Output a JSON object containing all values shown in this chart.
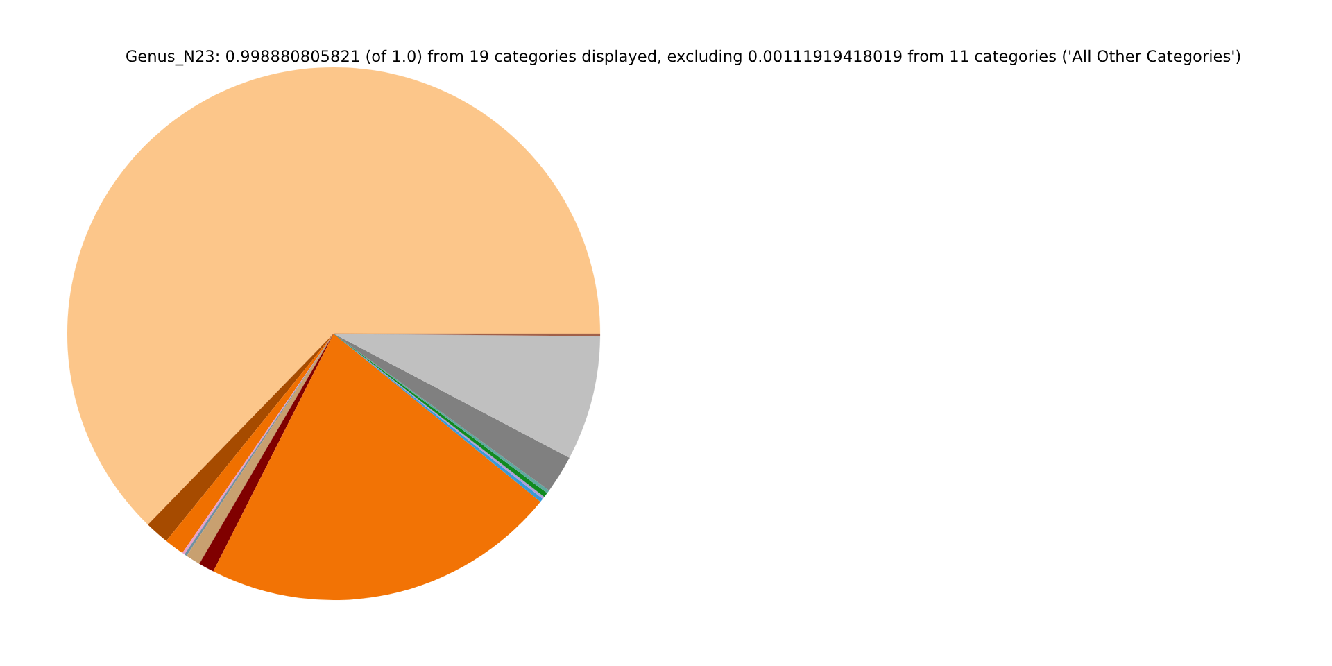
{
  "chart_data": {
    "type": "pie",
    "title": "Genus_N23: 0.998880805821 (of 1.0) from 19 categories displayed, excluding 0.00111919418019 from 11 categories ('All Other Categories')",
    "categories": [
      null,
      null,
      null,
      null,
      null,
      null,
      null,
      null,
      null,
      null,
      null,
      null,
      null,
      null,
      null
    ],
    "values": [
      62.72,
      1.47,
      1.2,
      0.15,
      0.15,
      0.9,
      0.95,
      21.6,
      0.22,
      0.15,
      0.28,
      0.2,
      2.3,
      7.56,
      0.15
    ],
    "colors": [
      "#fcc68a",
      "#a64b00",
      "#f07000",
      "#e8a0c8",
      "#7090a0",
      "#c8a070",
      "#800000",
      "#f27305",
      "#3a9ad8",
      "#b0a0d8",
      "#108a20",
      "#60a8a0",
      "#808080",
      "#c0c0c0",
      "#a0604a"
    ]
  }
}
